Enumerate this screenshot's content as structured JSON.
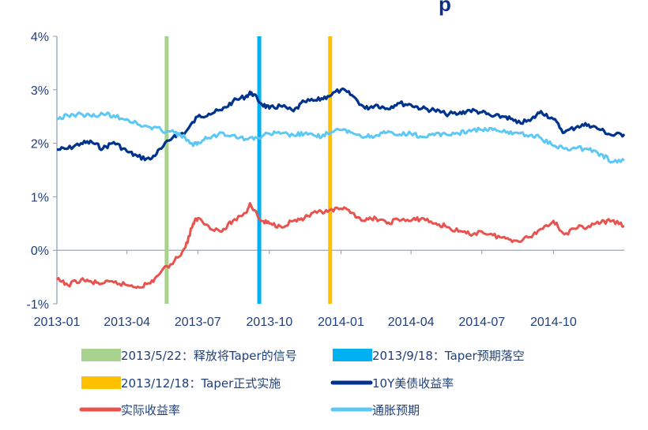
{
  "chart_data": {
    "type": "line",
    "title_fragment": "p",
    "xlabel": "",
    "ylabel": "",
    "x_range": [
      "2013-01-01",
      "2014-12-31"
    ],
    "x_ticks": [
      {
        "date": "2013-01-01",
        "label": "2013-01"
      },
      {
        "date": "2013-04-01",
        "label": "2013-04"
      },
      {
        "date": "2013-07-01",
        "label": "2013-07"
      },
      {
        "date": "2013-10-01",
        "label": "2013-10"
      },
      {
        "date": "2014-01-01",
        "label": "2014-01"
      },
      {
        "date": "2014-04-01",
        "label": "2014-04"
      },
      {
        "date": "2014-07-01",
        "label": "2014-07"
      },
      {
        "date": "2014-10-01",
        "label": "2014-10"
      }
    ],
    "ylim": [
      -1,
      4
    ],
    "y_ticks": [
      {
        "value": -1,
        "label": "-1%"
      },
      {
        "value": 0,
        "label": "0%"
      },
      {
        "value": 1,
        "label": "1%"
      },
      {
        "value": 2,
        "label": "2%"
      },
      {
        "value": 3,
        "label": "3%"
      },
      {
        "value": 4,
        "label": "4%"
      }
    ],
    "grid": false,
    "legend_placement": "bottom",
    "events": [
      {
        "date": "2013-05-22",
        "label": "2013/5/22：释放将Taper的信号",
        "color": "#a9d18e"
      },
      {
        "date": "2013-09-18",
        "label": "2013/9/18：Taper预期落空",
        "color": "#00b0f0"
      },
      {
        "date": "2013-12-18",
        "label": "2013/12/18：Taper正式实施",
        "color": "#ffc000"
      }
    ],
    "series": [
      {
        "name": "10Y美债收益率",
        "color": "#00338d",
        "points": [
          [
            "2013-01-01",
            1.88
          ],
          [
            "2013-01-15",
            1.9
          ],
          [
            "2013-02-01",
            2.0
          ],
          [
            "2013-02-15",
            2.02
          ],
          [
            "2013-03-01",
            1.9
          ],
          [
            "2013-03-15",
            2.02
          ],
          [
            "2013-04-01",
            1.85
          ],
          [
            "2013-04-15",
            1.75
          ],
          [
            "2013-05-01",
            1.7
          ],
          [
            "2013-05-15",
            1.9
          ],
          [
            "2013-06-01",
            2.15
          ],
          [
            "2013-06-15",
            2.2
          ],
          [
            "2013-07-01",
            2.5
          ],
          [
            "2013-07-15",
            2.55
          ],
          [
            "2013-08-01",
            2.62
          ],
          [
            "2013-08-15",
            2.78
          ],
          [
            "2013-09-01",
            2.88
          ],
          [
            "2013-09-08",
            2.95
          ],
          [
            "2013-09-20",
            2.75
          ],
          [
            "2013-10-01",
            2.65
          ],
          [
            "2013-10-15",
            2.7
          ],
          [
            "2013-11-01",
            2.6
          ],
          [
            "2013-11-15",
            2.78
          ],
          [
            "2013-12-01",
            2.8
          ],
          [
            "2013-12-15",
            2.88
          ],
          [
            "2014-01-01",
            3.0
          ],
          [
            "2014-01-15",
            2.9
          ],
          [
            "2014-02-01",
            2.65
          ],
          [
            "2014-02-15",
            2.72
          ],
          [
            "2014-03-01",
            2.65
          ],
          [
            "2014-03-15",
            2.75
          ],
          [
            "2014-04-01",
            2.72
          ],
          [
            "2014-04-15",
            2.65
          ],
          [
            "2014-05-01",
            2.62
          ],
          [
            "2014-05-15",
            2.55
          ],
          [
            "2014-06-01",
            2.55
          ],
          [
            "2014-06-15",
            2.62
          ],
          [
            "2014-07-01",
            2.58
          ],
          [
            "2014-07-15",
            2.5
          ],
          [
            "2014-08-01",
            2.5
          ],
          [
            "2014-08-15",
            2.38
          ],
          [
            "2014-09-01",
            2.42
          ],
          [
            "2014-09-15",
            2.6
          ],
          [
            "2014-10-01",
            2.45
          ],
          [
            "2014-10-15",
            2.2
          ],
          [
            "2014-11-01",
            2.32
          ],
          [
            "2014-11-15",
            2.35
          ],
          [
            "2014-12-01",
            2.25
          ],
          [
            "2014-12-15",
            2.15
          ],
          [
            "2014-12-31",
            2.17
          ]
        ]
      },
      {
        "name": "实际收益率",
        "color": "#e8534f",
        "points": [
          [
            "2013-01-01",
            -0.55
          ],
          [
            "2013-01-15",
            -0.65
          ],
          [
            "2013-02-01",
            -0.55
          ],
          [
            "2013-02-15",
            -0.6
          ],
          [
            "2013-03-01",
            -0.62
          ],
          [
            "2013-03-15",
            -0.6
          ],
          [
            "2013-04-01",
            -0.65
          ],
          [
            "2013-04-15",
            -0.68
          ],
          [
            "2013-05-01",
            -0.62
          ],
          [
            "2013-05-15",
            -0.4
          ],
          [
            "2013-06-01",
            -0.2
          ],
          [
            "2013-06-15",
            0.05
          ],
          [
            "2013-06-25",
            0.5
          ],
          [
            "2013-07-01",
            0.6
          ],
          [
            "2013-07-15",
            0.45
          ],
          [
            "2013-08-01",
            0.35
          ],
          [
            "2013-08-15",
            0.55
          ],
          [
            "2013-09-01",
            0.7
          ],
          [
            "2013-09-06",
            0.88
          ],
          [
            "2013-09-20",
            0.55
          ],
          [
            "2013-10-01",
            0.5
          ],
          [
            "2013-10-15",
            0.45
          ],
          [
            "2013-11-01",
            0.55
          ],
          [
            "2013-11-15",
            0.6
          ],
          [
            "2013-12-01",
            0.7
          ],
          [
            "2013-12-15",
            0.72
          ],
          [
            "2014-01-01",
            0.78
          ],
          [
            "2014-01-15",
            0.7
          ],
          [
            "2014-02-01",
            0.55
          ],
          [
            "2014-02-15",
            0.6
          ],
          [
            "2014-03-01",
            0.5
          ],
          [
            "2014-03-15",
            0.58
          ],
          [
            "2014-04-01",
            0.55
          ],
          [
            "2014-04-15",
            0.6
          ],
          [
            "2014-05-01",
            0.5
          ],
          [
            "2014-05-15",
            0.45
          ],
          [
            "2014-06-01",
            0.35
          ],
          [
            "2014-06-15",
            0.3
          ],
          [
            "2014-07-01",
            0.35
          ],
          [
            "2014-07-15",
            0.28
          ],
          [
            "2014-08-01",
            0.22
          ],
          [
            "2014-08-15",
            0.18
          ],
          [
            "2014-09-01",
            0.25
          ],
          [
            "2014-09-15",
            0.4
          ],
          [
            "2014-10-01",
            0.55
          ],
          [
            "2014-10-15",
            0.3
          ],
          [
            "2014-11-01",
            0.42
          ],
          [
            "2014-11-15",
            0.45
          ],
          [
            "2014-12-01",
            0.52
          ],
          [
            "2014-12-15",
            0.55
          ],
          [
            "2014-12-31",
            0.45
          ]
        ]
      },
      {
        "name": "通胀预期",
        "color": "#5ec8f5",
        "points": [
          [
            "2013-01-01",
            2.45
          ],
          [
            "2013-01-15",
            2.52
          ],
          [
            "2013-02-01",
            2.55
          ],
          [
            "2013-02-15",
            2.5
          ],
          [
            "2013-03-01",
            2.55
          ],
          [
            "2013-03-15",
            2.52
          ],
          [
            "2013-04-01",
            2.45
          ],
          [
            "2013-04-15",
            2.35
          ],
          [
            "2013-05-01",
            2.3
          ],
          [
            "2013-05-15",
            2.25
          ],
          [
            "2013-06-01",
            2.2
          ],
          [
            "2013-06-15",
            2.1
          ],
          [
            "2013-06-25",
            1.95
          ],
          [
            "2013-07-01",
            2.02
          ],
          [
            "2013-07-15",
            2.1
          ],
          [
            "2013-08-01",
            2.2
          ],
          [
            "2013-08-15",
            2.15
          ],
          [
            "2013-09-01",
            2.08
          ],
          [
            "2013-09-15",
            2.1
          ],
          [
            "2013-10-01",
            2.18
          ],
          [
            "2013-10-15",
            2.18
          ],
          [
            "2013-11-01",
            2.15
          ],
          [
            "2013-11-15",
            2.18
          ],
          [
            "2013-12-01",
            2.12
          ],
          [
            "2013-12-15",
            2.18
          ],
          [
            "2014-01-01",
            2.25
          ],
          [
            "2014-01-15",
            2.2
          ],
          [
            "2014-02-01",
            2.12
          ],
          [
            "2014-02-15",
            2.15
          ],
          [
            "2014-03-01",
            2.2
          ],
          [
            "2014-03-15",
            2.15
          ],
          [
            "2014-04-01",
            2.18
          ],
          [
            "2014-04-15",
            2.12
          ],
          [
            "2014-05-01",
            2.15
          ],
          [
            "2014-05-15",
            2.18
          ],
          [
            "2014-06-01",
            2.18
          ],
          [
            "2014-06-15",
            2.25
          ],
          [
            "2014-07-01",
            2.25
          ],
          [
            "2014-07-15",
            2.25
          ],
          [
            "2014-08-01",
            2.2
          ],
          [
            "2014-08-15",
            2.2
          ],
          [
            "2014-09-01",
            2.15
          ],
          [
            "2014-09-15",
            2.1
          ],
          [
            "2014-10-01",
            1.95
          ],
          [
            "2014-10-15",
            1.9
          ],
          [
            "2014-11-01",
            1.92
          ],
          [
            "2014-11-15",
            1.88
          ],
          [
            "2014-12-01",
            1.8
          ],
          [
            "2014-12-15",
            1.65
          ],
          [
            "2014-12-31",
            1.68
          ]
        ]
      }
    ]
  }
}
